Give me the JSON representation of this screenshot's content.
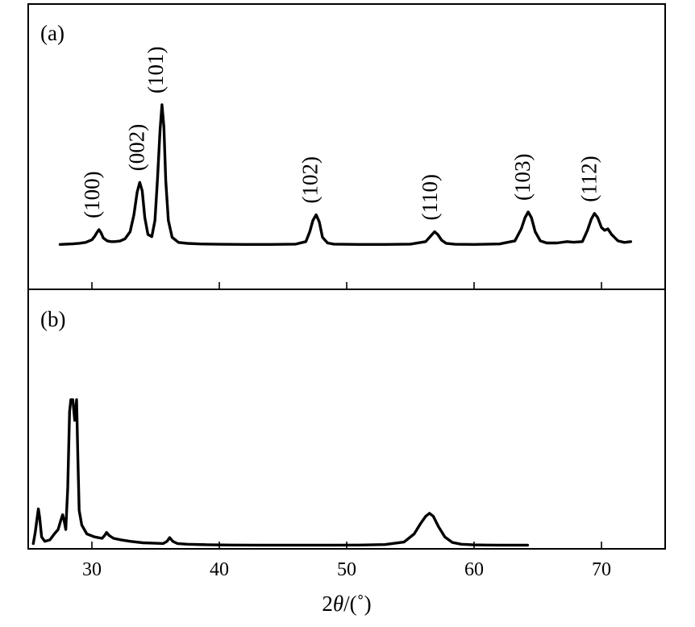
{
  "chart_data": [
    {
      "type": "line",
      "panel_label": "(a)",
      "xlim": [
        25,
        75
      ],
      "ylim": [
        0,
        100
      ],
      "x": [
        27.5,
        28,
        28.5,
        29,
        29.5,
        30,
        30.2,
        30.4,
        30.55,
        30.7,
        30.9,
        31.2,
        31.5,
        31.8,
        32.2,
        32.6,
        33,
        33.3,
        33.55,
        33.75,
        33.95,
        34.15,
        34.4,
        34.7,
        34.95,
        35.15,
        35.35,
        35.5,
        35.65,
        35.8,
        36,
        36.3,
        36.8,
        37.5,
        38.5,
        40,
        42,
        44,
        46,
        46.8,
        47.1,
        47.35,
        47.6,
        47.85,
        48.1,
        48.5,
        49,
        51,
        53,
        55,
        56.2,
        56.6,
        56.9,
        57.15,
        57.45,
        57.8,
        58.5,
        60,
        62,
        63.2,
        63.7,
        64,
        64.25,
        64.5,
        64.8,
        65.2,
        65.7,
        66.5,
        67.3,
        67.8,
        68.5,
        68.9,
        69.2,
        69.45,
        69.7,
        70,
        70.25,
        70.5,
        70.8,
        71.3,
        71.8,
        72.3
      ],
      "y": [
        1,
        1.2,
        1.4,
        1.8,
        2.4,
        4.2,
        6.5,
        9.5,
        11.5,
        9.5,
        5.5,
        3.5,
        3,
        3,
        3.4,
        5,
        10,
        22,
        38,
        45,
        39,
        20,
        8,
        6.5,
        18,
        48,
        82,
        100,
        84,
        46,
        18,
        6,
        2.4,
        1.7,
        1.3,
        1.1,
        1,
        1,
        1.2,
        3,
        10,
        18,
        22,
        17,
        6,
        2,
        1.2,
        1,
        1,
        1.2,
        3,
        7,
        10,
        8,
        4,
        1.8,
        1.1,
        1,
        1.3,
        3.5,
        12,
        20,
        24,
        20,
        10,
        3.5,
        2,
        2,
        3,
        2.5,
        3,
        11,
        19,
        23,
        20,
        13,
        11,
        12,
        8,
        3.5,
        2.4,
        3
      ],
      "peak_labels": [
        {
          "label": "(100)",
          "x": 30.5
        },
        {
          "label": "(002)",
          "x": 34.0
        },
        {
          "label": "(101)",
          "x": 35.5
        },
        {
          "label": "(102)",
          "x": 47.6
        },
        {
          "label": "(110)",
          "x": 57.0
        },
        {
          "label": "(103)",
          "x": 64.3
        },
        {
          "label": "(112)",
          "x": 69.5
        }
      ]
    },
    {
      "type": "line",
      "panel_label": "(b)",
      "xlim": [
        25,
        75
      ],
      "ylim": [
        0,
        100
      ],
      "x": [
        25.4,
        25.55,
        25.7,
        25.8,
        25.9,
        26.05,
        26.3,
        26.7,
        27.05,
        27.35,
        27.55,
        27.7,
        27.8,
        27.95,
        28.1,
        28.25,
        28.35,
        28.5,
        28.65,
        28.8,
        28.9,
        29.0,
        29.2,
        29.6,
        30.2,
        30.8,
        31.0,
        31.15,
        31.35,
        31.7,
        32.3,
        33,
        34,
        35,
        35.6,
        35.9,
        36.1,
        36.35,
        36.7,
        37.5,
        39,
        41,
        43,
        45,
        47,
        49,
        51,
        53,
        54.5,
        55.3,
        55.8,
        56.2,
        56.5,
        56.8,
        57.2,
        57.7,
        58.3,
        59,
        60,
        61,
        62,
        63,
        64.2
      ],
      "y": [
        2.5,
        10,
        20,
        26,
        20,
        7,
        4,
        5,
        9,
        12,
        18,
        22,
        19,
        12,
        40,
        92,
        100,
        100,
        86,
        100,
        60,
        25,
        15,
        9,
        7,
        6,
        8,
        10,
        8,
        6,
        5,
        4,
        3,
        2.7,
        2.5,
        4,
        6.5,
        4,
        2.5,
        2,
        1.7,
        1.5,
        1.4,
        1.4,
        1.4,
        1.4,
        1.5,
        1.8,
        3.5,
        9,
        16,
        21,
        23,
        21,
        14,
        7,
        3.2,
        2,
        1.6,
        1.5,
        1.4,
        1.4,
        1.4
      ]
    }
  ],
  "x_axis": {
    "tick_values": [
      30,
      40,
      50,
      60,
      70
    ],
    "tick_labels": [
      "30",
      "40",
      "50",
      "60",
      "70"
    ],
    "title_prefix": "2",
    "title_symbol": "θ",
    "title_suffix": "/(˚)"
  }
}
